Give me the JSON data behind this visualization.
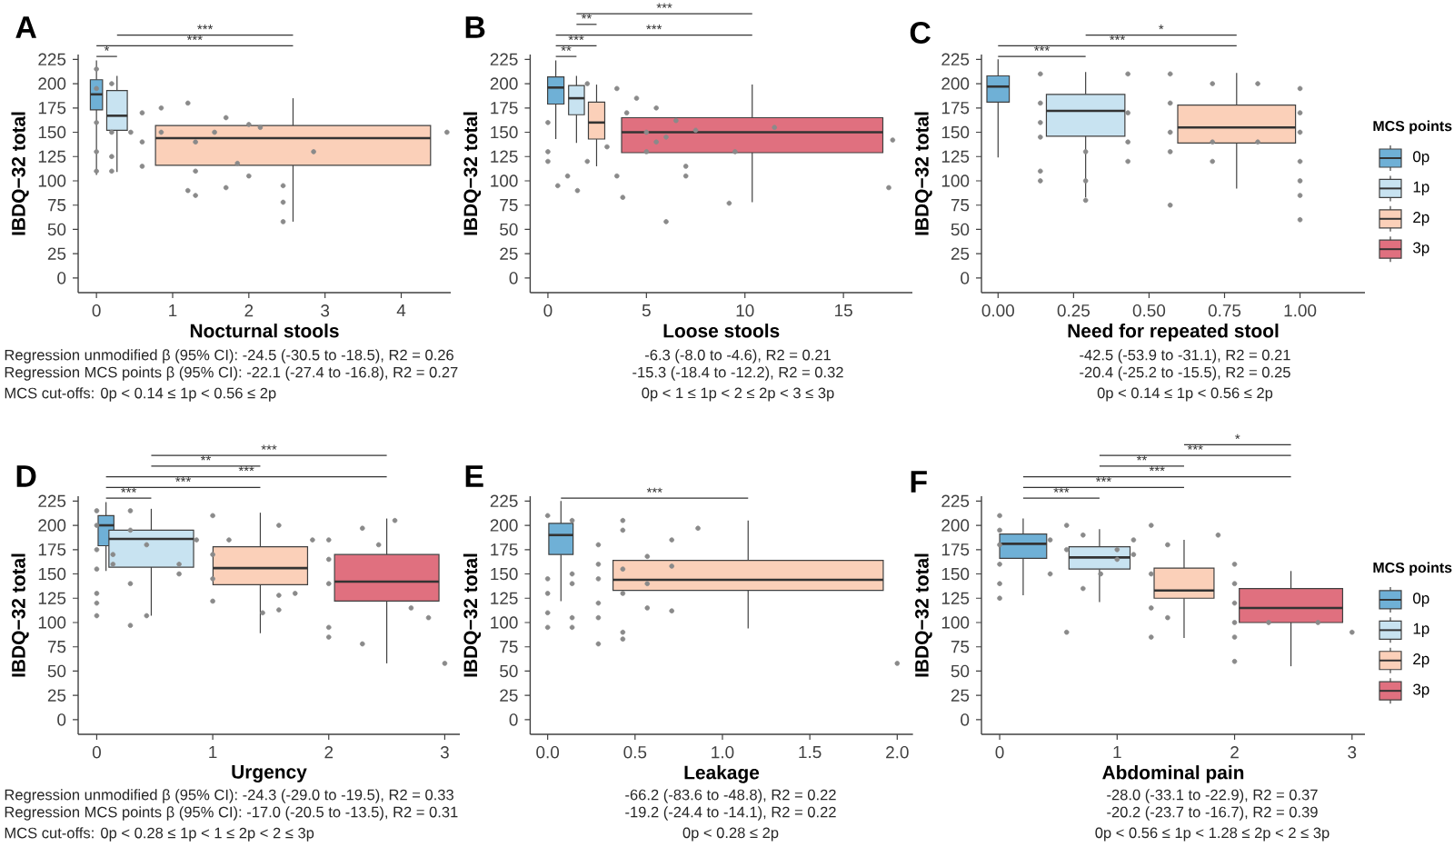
{
  "chart_data": [
    {
      "type": "box",
      "title": "A",
      "xlabel": "Nocturnal stools",
      "ylabel": "IBDQ−32 total",
      "xlim": [
        -0.24,
        4.65
      ],
      "xticks": [
        0,
        1,
        2,
        3,
        4
      ],
      "ylim": [
        -15,
        230
      ],
      "yticks": [
        0,
        25,
        50,
        75,
        100,
        125,
        150,
        175,
        200,
        225
      ],
      "series": [
        {
          "type": "box",
          "color": "#6fb0d6",
          "x": [
            0
          ],
          "boxes": [
            {
              "low": 106,
              "q1": 173,
              "median": 189,
              "q3": 204,
              "high": 224
            }
          ]
        },
        {
          "type": "box",
          "color": "#c8e3f1",
          "x": [
            0.27
          ],
          "boxes": [
            {
              "low": 109,
              "q1": 152,
              "median": 167,
              "q3": 193,
              "high": 208
            }
          ]
        },
        {
          "type": "box",
          "color": "#fbd0b9",
          "x": [
            2.58
          ],
          "boxes": [
            {
              "low": 58,
              "q1": 116,
              "median": 144,
              "q3": 157,
              "high": 185
            }
          ]
        },
        {
          "type": "scatter",
          "color": "#8a8a8a",
          "x": [
            0,
            0,
            0,
            0,
            0,
            0.2,
            0.2,
            0.2,
            0.2,
            0.45,
            0.6,
            0.6,
            0.6,
            0.85,
            0.85,
            1.2,
            1.2,
            1.3,
            1.3,
            1.3,
            1.55,
            1.7,
            1.7,
            1.85,
            2.0,
            2.0,
            2.15,
            2.45,
            2.45,
            2.45,
            2.85,
            4.6
          ],
          "values": [
            215,
            195,
            160,
            130,
            110,
            200,
            150,
            125,
            110,
            150,
            170,
            140,
            115,
            175,
            150,
            180,
            90,
            140,
            110,
            85,
            150,
            165,
            93,
            118,
            105,
            158,
            155,
            95,
            78,
            58,
            130,
            150
          ]
        }
      ],
      "annotations": [
        "***",
        "***",
        "*",
        "Regression unmodified β (95% CI): -24.5 (-30.5 to -18.5), R2 = 0.26",
        "Regression MCS points β (95% CI): -22.1 (-27.4 to -16.8), R2 = 0.27",
        "MCS cut-offs: 0p < 0.14 ≤ 1p < 0.56 ≤ 2p"
      ]
    },
    {
      "type": "box",
      "title": "B",
      "xlabel": "Loose stools",
      "ylabel": "IBDQ−32 total",
      "xlim": [
        -0.9,
        18.5
      ],
      "xticks": [
        0,
        5,
        10,
        15
      ],
      "ylim": [
        -15,
        230
      ],
      "yticks": [
        0,
        25,
        50,
        75,
        100,
        125,
        150,
        175,
        200,
        225
      ],
      "series": [
        {
          "type": "box",
          "color": "#6fb0d6",
          "x": [
            0.4
          ],
          "boxes": [
            {
              "low": 143,
              "q1": 179,
              "median": 196,
              "q3": 207,
              "high": 224
            }
          ]
        },
        {
          "type": "box",
          "color": "#c8e3f1",
          "x": [
            1.45
          ],
          "boxes": [
            {
              "low": 139,
              "q1": 168,
              "median": 185,
              "q3": 198,
              "high": 208
            }
          ]
        },
        {
          "type": "box",
          "color": "#fbd0b9",
          "x": [
            2.47
          ],
          "boxes": [
            {
              "low": 115,
              "q1": 143,
              "median": 160,
              "q3": 181,
              "high": 199
            }
          ]
        },
        {
          "type": "box",
          "color": "#e0707f",
          "x": [
            10.37
          ],
          "boxes": [
            {
              "low": 78,
              "q1": 129,
              "median": 150,
              "q3": 165,
              "high": 199
            }
          ]
        },
        {
          "type": "scatter",
          "color": "#8a8a8a",
          "x": [
            0,
            0,
            0,
            0.5,
            1,
            1.5,
            2,
            2,
            3,
            3.5,
            3.5,
            3.8,
            4,
            4.5,
            5,
            5,
            5.5,
            5.5,
            6,
            6,
            6.5,
            7,
            7,
            7.5,
            9.2,
            9.5,
            11.5,
            17.5,
            17.3
          ],
          "values": [
            160,
            130,
            120,
            95,
            105,
            90,
            200,
            120,
            135,
            195,
            105,
            83,
            170,
            185,
            150,
            130,
            175,
            140,
            145,
            58,
            162,
            115,
            105,
            152,
            77,
            130,
            155,
            142,
            93
          ]
        }
      ],
      "annotations": [
        "***",
        "**",
        "***",
        "***",
        "**",
        "-6.3 (-8.0 to -4.6), R2 = 0.21",
        "-15.3 (-18.4 to -12.2), R2 = 0.32",
        "0p < 1 ≤ 1p < 2 ≤ 2p < 3 ≤ 3p"
      ]
    },
    {
      "type": "box",
      "title": "C",
      "xlabel": "Need for repeated stool",
      "ylabel": "IBDQ−32 total",
      "xlim": [
        -0.055,
        1.215
      ],
      "xticks": [
        {
          "value": 0,
          "label": "0.00"
        },
        {
          "value": 0.25,
          "label": "0.25"
        },
        {
          "value": 0.5,
          "label": "0.50"
        },
        {
          "value": 0.75,
          "label": "0.75"
        },
        {
          "value": 1,
          "label": "1.00"
        }
      ],
      "ylim": [
        -15,
        230
      ],
      "yticks": [
        0,
        25,
        50,
        75,
        100,
        125,
        150,
        175,
        200,
        225
      ],
      "legend": "right",
      "legend_title": "MCS points",
      "series": [
        {
          "type": "box",
          "name": "0p",
          "color": "#6fb0d6",
          "x": [
            0
          ],
          "boxes": [
            {
              "low": 124,
              "q1": 181,
              "median": 197,
              "q3": 208,
              "high": 225
            }
          ]
        },
        {
          "type": "box",
          "name": "1p",
          "color": "#c8e3f1",
          "x": [
            0.29
          ],
          "boxes": [
            {
              "low": 83,
              "q1": 146,
              "median": 172,
              "q3": 189,
              "high": 212
            }
          ]
        },
        {
          "type": "box",
          "name": "2p",
          "color": "#fbd0b9",
          "x": [
            0.79
          ],
          "boxes": [
            {
              "low": 92,
              "q1": 139,
              "median": 155,
              "q3": 178,
              "high": 211
            }
          ]
        },
        {
          "type": "box",
          "name": "3p",
          "color": "#e0707f"
        },
        {
          "type": "scatter",
          "color": "#8a8a8a",
          "x": [
            0.14,
            0.14,
            0.14,
            0.14,
            0.14,
            0.14,
            0.29,
            0.29,
            0.29,
            0.43,
            0.43,
            0.43,
            0.43,
            0.57,
            0.57,
            0.57,
            0.57,
            0.57,
            0.71,
            0.71,
            0.71,
            0.86,
            0.86,
            1,
            1,
            1,
            1,
            1,
            1,
            1
          ],
          "values": [
            210,
            180,
            160,
            145,
            110,
            100,
            130,
            100,
            80,
            210,
            170,
            140,
            120,
            210,
            180,
            150,
            130,
            75,
            200,
            140,
            120,
            200,
            140,
            195,
            170,
            150,
            120,
            100,
            85,
            60
          ]
        }
      ],
      "annotations": [
        "*",
        "***",
        "***",
        "-42.5 (-53.9 to -31.1), R2 = 0.21",
        "-20.4 (-25.2 to -15.5), R2 = 0.25",
        "0p < 0.14 ≤ 1p < 0.56 ≤ 2p"
      ]
    },
    {
      "type": "box",
      "title": "D",
      "xlabel": "Urgency",
      "ylabel": "IBDQ−32 total",
      "xlim": [
        -0.16,
        3.13
      ],
      "xticks": [
        0,
        1,
        2,
        3
      ],
      "ylim": [
        -15,
        230
      ],
      "yticks": [
        0,
        25,
        50,
        75,
        100,
        125,
        150,
        175,
        200,
        225
      ],
      "series": [
        {
          "type": "box",
          "color": "#6fb0d6",
          "x": [
            0.08
          ],
          "boxes": [
            {
              "low": 153,
              "q1": 179,
              "median": 200,
              "q3": 210,
              "high": 224
            }
          ]
        },
        {
          "type": "box",
          "color": "#c8e3f1",
          "x": [
            0.47
          ],
          "boxes": [
            {
              "low": 107,
              "q1": 157,
              "median": 186,
              "q3": 195,
              "high": 217
            }
          ]
        },
        {
          "type": "box",
          "color": "#fbd0b9",
          "x": [
            1.41
          ],
          "boxes": [
            {
              "low": 89,
              "q1": 139,
              "median": 156,
              "q3": 178,
              "high": 213
            }
          ]
        },
        {
          "type": "box",
          "color": "#e0707f",
          "x": [
            2.5
          ],
          "boxes": [
            {
              "low": 58,
              "q1": 122,
              "median": 142,
              "q3": 170,
              "high": 207
            }
          ]
        },
        {
          "type": "scatter",
          "color": "#8a8a8a",
          "x": [
            0,
            0,
            0,
            0,
            0,
            0,
            0,
            0.14,
            0.14,
            0.29,
            0.29,
            0.29,
            0.29,
            0.43,
            0.43,
            0.71,
            0.71,
            0.86,
            1,
            1,
            1,
            1,
            1.14,
            1.43,
            1.57,
            1.57,
            1.57,
            1.71,
            1.86,
            2,
            2,
            2,
            2,
            2,
            2.29,
            2.29,
            2.43,
            2.57,
            2.71,
            2.86,
            3
          ],
          "values": [
            215,
            200,
            175,
            155,
            130,
            120,
            107,
            170,
            160,
            215,
            195,
            140,
            97,
            180,
            107,
            160,
            150,
            185,
            210,
            170,
            145,
            122,
            185,
            110,
            200,
            128,
            113,
            130,
            185,
            185,
            165,
            140,
            95,
            85,
            197,
            78,
            180,
            205,
            115,
            105,
            58
          ]
        }
      ],
      "annotations": [
        "***",
        "**",
        "***",
        "***",
        "***",
        "Regression unmodified β (95% CI): -24.3 (-29.0 to -19.5), R2 = 0.33",
        "Regression MCS points β (95% CI): -17.0 (-20.5 to -13.5), R2 = 0.31",
        "MCS cut-offs: 0p < 0.28 ≤ 1p < 1 ≤ 2p < 2 ≤ 3p"
      ]
    },
    {
      "type": "box",
      "title": "E",
      "xlabel": "Leakage",
      "ylabel": "IBDQ−32 total",
      "xlim": [
        -0.1,
        2.09
      ],
      "xticks": [
        {
          "value": 0,
          "label": "0.0"
        },
        {
          "value": 0.5,
          "label": "0.5"
        },
        {
          "value": 1,
          "label": "1.0"
        },
        {
          "value": 1.5,
          "label": "1.5"
        },
        {
          "value": 2,
          "label": "2.0"
        }
      ],
      "ylim": [
        -15,
        230
      ],
      "yticks": [
        0,
        25,
        50,
        75,
        100,
        125,
        150,
        175,
        200,
        225
      ],
      "series": [
        {
          "type": "box",
          "color": "#6fb0d6",
          "x": [
            0.076
          ],
          "boxes": [
            {
              "low": 122,
              "q1": 170,
              "median": 190,
              "q3": 202,
              "high": 225
            }
          ]
        },
        {
          "type": "box",
          "color": "#fbd0b9",
          "x": [
            1.147
          ],
          "boxes": [
            {
              "low": 94,
              "q1": 133,
              "median": 144,
              "q3": 164,
              "high": 205
            }
          ]
        },
        {
          "type": "scatter",
          "color": "#8a8a8a",
          "x": [
            0,
            0,
            0,
            0,
            0,
            0.14,
            0.14,
            0.14,
            0.14,
            0.14,
            0.29,
            0.29,
            0.29,
            0.29,
            0.29,
            0.29,
            0.43,
            0.43,
            0.43,
            0.43,
            0.43,
            0.43,
            0.57,
            0.57,
            0.57,
            0.71,
            0.71,
            0.71,
            0.86,
            2.0
          ],
          "values": [
            210,
            145,
            130,
            110,
            95,
            205,
            150,
            140,
            105,
            95,
            180,
            160,
            145,
            120,
            105,
            78,
            205,
            195,
            155,
            130,
            90,
            83,
            168,
            140,
            115,
            185,
            158,
            112,
            197,
            58
          ]
        }
      ],
      "annotations": [
        "***",
        "-66.2 (-83.6 to -48.8), R2 = 0.22",
        "-19.2 (-24.4 to -14.1), R2 = 0.22",
        "0p < 0.28 ≤ 2p"
      ]
    },
    {
      "type": "box",
      "title": "F",
      "xlabel": "Abdominal pain",
      "ylabel": "IBDQ−32 total",
      "xlim": [
        -0.155,
        3.11
      ],
      "xticks": [
        0,
        1,
        2,
        3
      ],
      "ylim": [
        -15,
        230
      ],
      "yticks": [
        0,
        25,
        50,
        75,
        100,
        125,
        150,
        175,
        200,
        225
      ],
      "legend": "right",
      "legend_title": "MCS points",
      "series": [
        {
          "type": "box",
          "name": "0p",
          "color": "#6fb0d6",
          "x": [
            0.2
          ],
          "boxes": [
            {
              "low": 128,
              "q1": 166,
              "median": 181,
              "q3": 191,
              "high": 207
            }
          ]
        },
        {
          "type": "box",
          "name": "1p",
          "color": "#c8e3f1",
          "x": [
            0.85
          ],
          "boxes": [
            {
              "low": 121,
              "q1": 155,
              "median": 167,
              "q3": 178,
              "high": 196
            }
          ]
        },
        {
          "type": "box",
          "name": "2p",
          "color": "#fbd0b9",
          "x": [
            1.57
          ],
          "boxes": [
            {
              "low": 84,
              "q1": 125,
              "median": 133,
              "q3": 156,
              "high": 185
            }
          ]
        },
        {
          "type": "box",
          "name": "3p",
          "color": "#e0707f",
          "x": [
            2.48
          ],
          "boxes": [
            {
              "low": 55,
              "q1": 100,
              "median": 115,
              "q3": 135,
              "high": 153
            }
          ]
        },
        {
          "type": "scatter",
          "color": "#8a8a8a",
          "x": [
            0,
            0,
            0,
            0,
            0,
            0,
            0.43,
            0.43,
            0.57,
            0.57,
            0.57,
            0.71,
            0.71,
            0.86,
            1.0,
            1.0,
            1.14,
            1.14,
            1.29,
            1.29,
            1.29,
            1.29,
            1.43,
            1.43,
            1.86,
            2.0,
            2.0,
            2.0,
            2.0,
            2.0,
            2.0,
            2.29,
            2.71,
            3.0
          ],
          "values": [
            210,
            195,
            180,
            160,
            140,
            125,
            185,
            150,
            200,
            175,
            90,
            190,
            135,
            150,
            175,
            165,
            185,
            170,
            200,
            150,
            115,
            85,
            180,
            105,
            190,
            160,
            140,
            120,
            100,
            85,
            60,
            100,
            100,
            90
          ]
        }
      ],
      "annotations": [
        "*",
        "***",
        "**",
        "***",
        "***",
        "***",
        "-28.0 (-33.1 to -22.9), R2 = 0.37",
        "-20.2 (-23.7 to -16.7), R2 = 0.39",
        "0p < 0.56 ≤ 1p < 1.28 ≤ 2p < 2 ≤ 3p"
      ]
    }
  ]
}
